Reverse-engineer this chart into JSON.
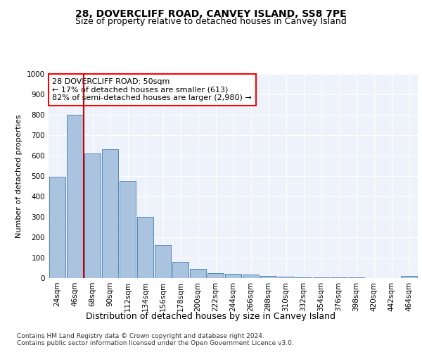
{
  "title": "28, DOVERCLIFF ROAD, CANVEY ISLAND, SS8 7PE",
  "subtitle": "Size of property relative to detached houses in Canvey Island",
  "xlabel": "Distribution of detached houses by size in Canvey Island",
  "ylabel": "Number of detached properties",
  "categories": [
    "24sqm",
    "46sqm",
    "68sqm",
    "90sqm",
    "112sqm",
    "134sqm",
    "156sqm",
    "178sqm",
    "200sqm",
    "222sqm",
    "244sqm",
    "266sqm",
    "288sqm",
    "310sqm",
    "332sqm",
    "354sqm",
    "376sqm",
    "398sqm",
    "420sqm",
    "442sqm",
    "464sqm"
  ],
  "values": [
    495,
    800,
    610,
    630,
    475,
    300,
    162,
    78,
    45,
    25,
    22,
    18,
    12,
    8,
    5,
    3,
    2,
    2,
    1,
    0,
    10
  ],
  "bar_color": "#aac4e0",
  "bar_edge_color": "#5588bb",
  "highlight_color": "#cc0000",
  "highlight_vline_x": 1.5,
  "ylim": [
    0,
    1000
  ],
  "yticks": [
    0,
    100,
    200,
    300,
    400,
    500,
    600,
    700,
    800,
    900,
    1000
  ],
  "annotation_text": "28 DOVERCLIFF ROAD: 50sqm\n← 17% of detached houses are smaller (613)\n82% of semi-detached houses are larger (2,980) →",
  "footer_line1": "Contains HM Land Registry data © Crown copyright and database right 2024.",
  "footer_line2": "Contains public sector information licensed under the Open Government Licence v3.0.",
  "background_color": "#eef2fb",
  "title_fontsize": 10,
  "subtitle_fontsize": 9,
  "axis_label_fontsize": 9,
  "tick_fontsize": 7.5,
  "ylabel_fontsize": 8,
  "footer_fontsize": 6.5
}
